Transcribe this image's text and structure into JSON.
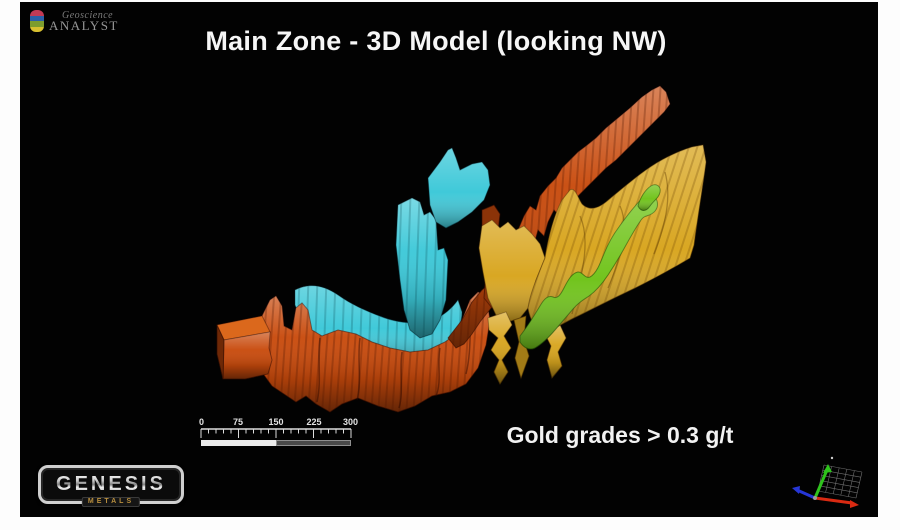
{
  "page": {
    "background": "#fdfdfd",
    "canvas_background": "#020202"
  },
  "header": {
    "app_logo": {
      "name_line1": "Geoscience",
      "name_line2": "ANALYST",
      "icon_band_colors": [
        "#c23a55",
        "#2b5fa8",
        "#7d9c2e",
        "#d8c030"
      ]
    },
    "title": "Main Zone - 3D Model (looking NW)"
  },
  "annotation": {
    "text": "Gold grades > 0.3 g/t"
  },
  "scale_bar": {
    "labels": [
      "0",
      "75",
      "150",
      "225",
      "300"
    ]
  },
  "model_zones": [
    {
      "id": "orange-surface",
      "color": "#c84a0c"
    },
    {
      "id": "cyan-surface",
      "color": "#3cc8d8"
    },
    {
      "id": "gold-surface",
      "color": "#d8a51e"
    },
    {
      "id": "green-surface",
      "color": "#6fc319"
    }
  ],
  "axis_triad": {
    "x_color": "#d92a12",
    "y_color": "#2ec41c",
    "z_color": "#2636d6"
  },
  "footer_logo": {
    "name": "GENESIS",
    "subtitle": "METALS"
  }
}
